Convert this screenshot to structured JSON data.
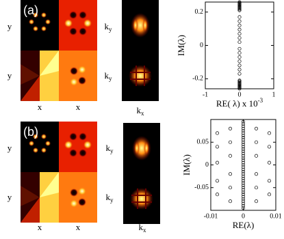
{
  "panels": [
    {
      "label": "(a)",
      "y_labels": [
        "y",
        "y"
      ],
      "x_labels": [
        "x",
        "x"
      ],
      "k_y_labels": [
        {
          "main": "k",
          "sub": "y"
        },
        {
          "main": "k",
          "sub": "y"
        }
      ],
      "k_x_label": {
        "main": "k",
        "sub": "x"
      }
    },
    {
      "label": "(b)",
      "y_labels": [
        "y",
        "y"
      ],
      "x_labels": [
        "x",
        "x"
      ],
      "k_y_labels": [
        {
          "main": "k",
          "sub": "y"
        },
        {
          "main": "k",
          "sub": "y"
        }
      ],
      "k_x_label": {
        "main": "k",
        "sub": "x"
      }
    }
  ],
  "chart_data": [
    {
      "type": "scatter",
      "xlabel": "RE( λ) x 10",
      "xlabel_exponent": "-3",
      "ylabel": "IM(λ)",
      "xlim": [
        -1,
        1
      ],
      "xticks": [
        -1,
        0,
        1
      ],
      "ylim": [
        -0.26,
        0.26
      ],
      "yticks": [
        0.2,
        0,
        -0.2
      ],
      "marker": "open-circle",
      "color": "#000000",
      "x": [
        0,
        0,
        0,
        0,
        0,
        0,
        0,
        0,
        0,
        0,
        0,
        0,
        0,
        0,
        0,
        0,
        0,
        0,
        0,
        0,
        0,
        0,
        0,
        0,
        0,
        0,
        0,
        0,
        0,
        0,
        0,
        0,
        0,
        0,
        0,
        0
      ],
      "values": [
        0.26,
        0.255,
        0.25,
        0.245,
        0.24,
        0.235,
        0.23,
        0.225,
        0.22,
        0.215,
        0.21,
        0.17,
        0.145,
        0.12,
        0.095,
        0.07,
        0.045,
        0.02,
        -0.02,
        -0.045,
        -0.07,
        -0.095,
        -0.12,
        -0.145,
        -0.17,
        -0.21,
        -0.215,
        -0.22,
        -0.225,
        -0.23,
        -0.235,
        -0.24,
        -0.245,
        -0.25,
        -0.255,
        -0.26
      ]
    },
    {
      "type": "scatter",
      "xlabel": "RE(λ)",
      "ylabel": "IM(λ)",
      "xlim": [
        -0.01,
        0.01
      ],
      "xticks": [
        -0.01,
        0,
        0.01
      ],
      "ylim": [
        -0.1,
        0.1
      ],
      "yticks": [
        0.05,
        0,
        -0.05
      ],
      "marker": "open-circle",
      "color": "#000000",
      "x": [
        0,
        0,
        0,
        0,
        0,
        0,
        0,
        0,
        0,
        0,
        0,
        0,
        0,
        0,
        0,
        0,
        0,
        0,
        0,
        0,
        0,
        0,
        0,
        0,
        0,
        0,
        0,
        0,
        0,
        0,
        0,
        0,
        0,
        0,
        0,
        0,
        0,
        0,
        0,
        -0.004,
        0.004,
        -0.004,
        0.004,
        -0.004,
        0.004,
        -0.004,
        0.004,
        -0.004,
        0.004,
        -0.004,
        0.004,
        -0.008,
        0.008,
        -0.008,
        0.008,
        -0.008,
        0.008,
        -0.008,
        0.008,
        -0.008,
        0.008
      ],
      "values": [
        0.095,
        0.09,
        0.085,
        0.08,
        0.075,
        0.07,
        0.065,
        0.06,
        0.055,
        0.05,
        0.045,
        0.04,
        0.035,
        0.03,
        0.025,
        0.02,
        0.015,
        0.01,
        0.005,
        0,
        -0.005,
        -0.01,
        -0.015,
        -0.02,
        -0.025,
        -0.03,
        -0.035,
        -0.04,
        -0.045,
        -0.05,
        -0.055,
        -0.06,
        -0.065,
        -0.07,
        -0.075,
        -0.08,
        -0.085,
        -0.09,
        -0.095,
        0.08,
        0.08,
        0.05,
        0.05,
        0.02,
        0.02,
        -0.02,
        -0.02,
        -0.05,
        -0.05,
        -0.08,
        -0.08,
        0.07,
        0.07,
        0.04,
        0.04,
        0.005,
        0.005,
        -0.035,
        -0.035,
        -0.065,
        -0.065
      ]
    }
  ]
}
